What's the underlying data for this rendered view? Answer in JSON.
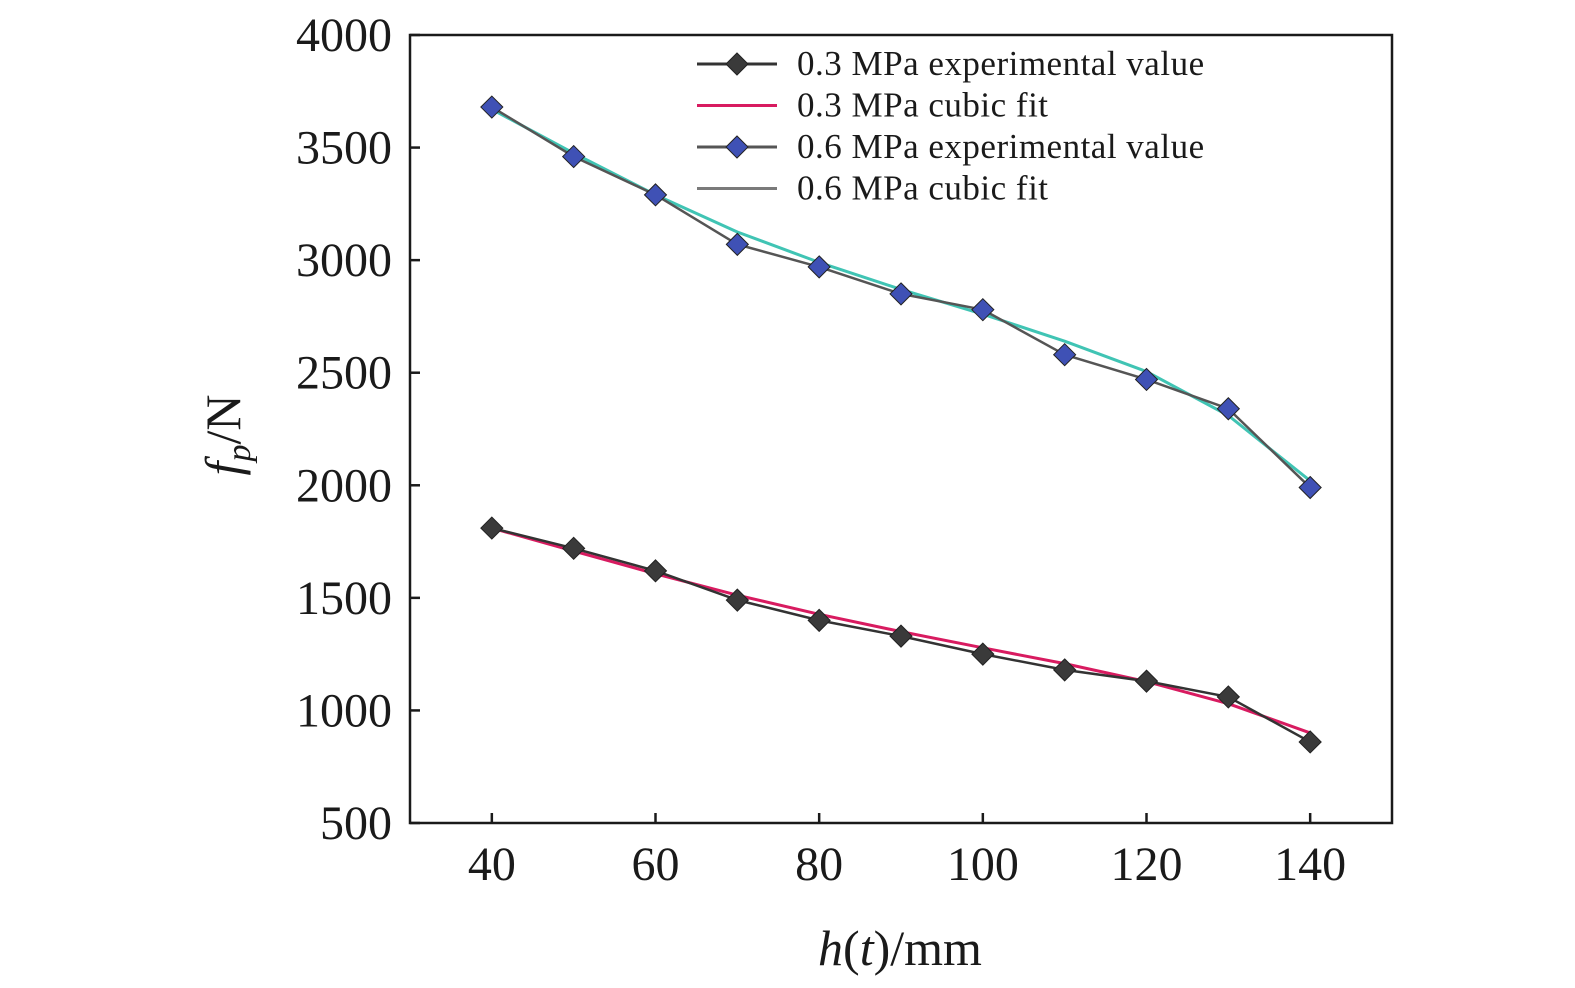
{
  "chart_data": {
    "type": "line",
    "xlabel": {
      "main": "h",
      "paren": "t",
      "unit": "/mm"
    },
    "ylabel": {
      "main": "f",
      "sub": "p",
      "unit": "/N"
    },
    "xlim": [
      30,
      150
    ],
    "ylim": [
      500,
      4000
    ],
    "xticks": [
      40,
      60,
      80,
      100,
      120,
      140
    ],
    "yticks": [
      500,
      1000,
      1500,
      2000,
      2500,
      3000,
      3500,
      4000
    ],
    "legend_position": "top-right",
    "x": [
      40,
      50,
      60,
      70,
      80,
      90,
      100,
      110,
      120,
      130,
      140
    ],
    "series": [
      {
        "name": "0.3 MPa experimental value",
        "kind": "experimental",
        "color": "#333333",
        "marker_fill": "#3a3a3a",
        "values": [
          1810,
          1720,
          1620,
          1490,
          1400,
          1330,
          1250,
          1180,
          1130,
          1060,
          860
        ]
      },
      {
        "name": "0.3 MPa cubic fit",
        "kind": "fit",
        "color": "#d81b60",
        "values": [
          1810,
          1708,
          1607,
          1512,
          1427,
          1350,
          1278,
          1208,
          1128,
          1030,
          900
        ]
      },
      {
        "name": "0.6 MPa experimental value",
        "kind": "experimental",
        "color": "#555555",
        "marker_fill": "#3f51b5",
        "values": [
          3680,
          3460,
          3290,
          3070,
          2970,
          2850,
          2780,
          2580,
          2470,
          2340,
          1990
        ]
      },
      {
        "name": "0.6 MPa cubic fit",
        "kind": "fit",
        "color": "#40c4b4",
        "legend_color": "#7a7a7a",
        "values": [
          3670,
          3475,
          3290,
          3125,
          2990,
          2870,
          2760,
          2640,
          2505,
          2310,
          2020
        ]
      }
    ]
  }
}
